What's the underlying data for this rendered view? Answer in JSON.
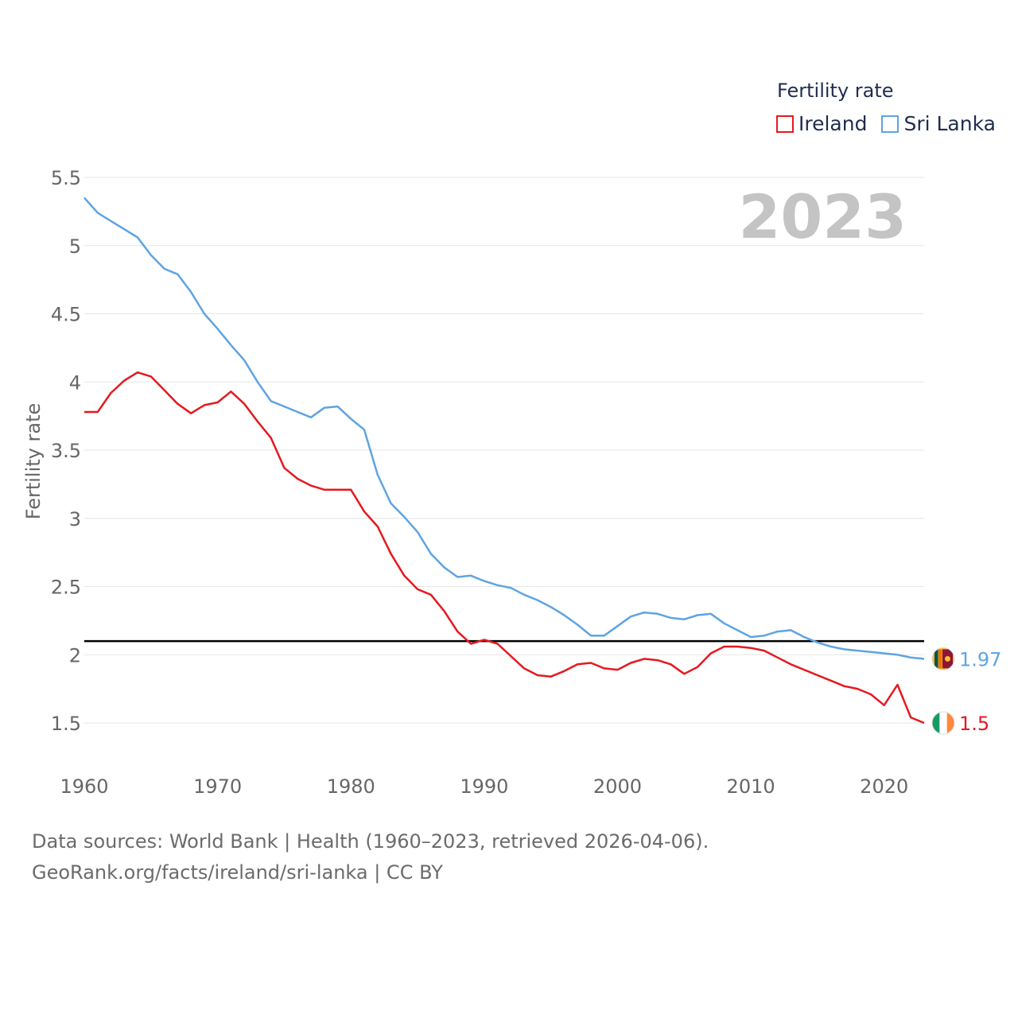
{
  "legend": {
    "title": "Fertility rate",
    "ireland_label": "Ireland",
    "srilanka_label": "Sri Lanka"
  },
  "year_label": "2023",
  "footer": {
    "line1": "Data sources: World Bank | Health (1960–2023, retrieved 2026-04-06).",
    "line2": "GeoRank.org/facts/ireland/sri-lanka | CC BY"
  },
  "colors": {
    "ireland": "#e5191f",
    "srilanka": "#5ea4e2",
    "reference": "#000000",
    "grid": "#e6e6e6",
    "tick_text": "#666666"
  },
  "icons": {
    "ireland_flag": "ireland-flag-icon",
    "srilanka_flag": "sri-lanka-flag-icon"
  },
  "chart_data": {
    "type": "line",
    "title": "",
    "xlabel": "",
    "ylabel": "Fertility rate",
    "xlim": [
      1960,
      2023
    ],
    "ylim": [
      1.5,
      5.5
    ],
    "yticks": [
      1.5,
      2,
      2.5,
      3,
      3.5,
      4,
      4.5,
      5,
      5.5
    ],
    "ytick_labels": [
      "1.5",
      "2",
      "2.5",
      "3",
      "3.5",
      "4",
      "4.5",
      "5",
      "5.5"
    ],
    "xticks": [
      1960,
      1970,
      1980,
      1990,
      2000,
      2010,
      2020
    ],
    "xtick_labels": [
      "1960",
      "1970",
      "1980",
      "1990",
      "2000",
      "2010",
      "2020"
    ],
    "reference_line": 2.1,
    "grid": true,
    "legend_position": "top-right",
    "x": [
      1960,
      1961,
      1962,
      1963,
      1964,
      1965,
      1966,
      1967,
      1968,
      1969,
      1970,
      1971,
      1972,
      1973,
      1974,
      1975,
      1976,
      1977,
      1978,
      1979,
      1980,
      1981,
      1982,
      1983,
      1984,
      1985,
      1986,
      1987,
      1988,
      1989,
      1990,
      1991,
      1992,
      1993,
      1994,
      1995,
      1996,
      1997,
      1998,
      1999,
      2000,
      2001,
      2002,
      2003,
      2004,
      2005,
      2006,
      2007,
      2008,
      2009,
      2010,
      2011,
      2012,
      2013,
      2014,
      2015,
      2016,
      2017,
      2018,
      2019,
      2020,
      2021,
      2022,
      2023
    ],
    "series": [
      {
        "name": "Ireland",
        "end_label": "1.5",
        "values": [
          3.78,
          3.78,
          3.92,
          4.01,
          4.07,
          4.04,
          3.94,
          3.84,
          3.77,
          3.83,
          3.85,
          3.93,
          3.84,
          3.71,
          3.59,
          3.37,
          3.29,
          3.24,
          3.21,
          3.21,
          3.21,
          3.05,
          2.94,
          2.74,
          2.58,
          2.48,
          2.44,
          2.32,
          2.17,
          2.08,
          2.11,
          2.08,
          1.99,
          1.9,
          1.85,
          1.84,
          1.88,
          1.93,
          1.94,
          1.9,
          1.89,
          1.94,
          1.97,
          1.96,
          1.93,
          1.86,
          1.91,
          2.01,
          2.06,
          2.06,
          2.05,
          2.03,
          1.98,
          1.93,
          1.89,
          1.85,
          1.81,
          1.77,
          1.75,
          1.71,
          1.63,
          1.78,
          1.54,
          1.5
        ]
      },
      {
        "name": "Sri Lanka",
        "end_label": "1.97",
        "values": [
          5.35,
          5.24,
          5.18,
          5.12,
          5.06,
          4.93,
          4.83,
          4.79,
          4.66,
          4.5,
          4.39,
          4.27,
          4.16,
          4.0,
          3.86,
          3.82,
          3.78,
          3.74,
          3.81,
          3.82,
          3.73,
          3.65,
          3.32,
          3.11,
          3.01,
          2.9,
          2.74,
          2.64,
          2.57,
          2.58,
          2.54,
          2.51,
          2.49,
          2.44,
          2.4,
          2.35,
          2.29,
          2.22,
          2.14,
          2.14,
          2.21,
          2.28,
          2.31,
          2.3,
          2.27,
          2.26,
          2.29,
          2.3,
          2.23,
          2.18,
          2.13,
          2.14,
          2.17,
          2.18,
          2.13,
          2.09,
          2.06,
          2.04,
          2.03,
          2.02,
          2.01,
          2.0,
          1.98,
          1.97
        ]
      }
    ]
  }
}
